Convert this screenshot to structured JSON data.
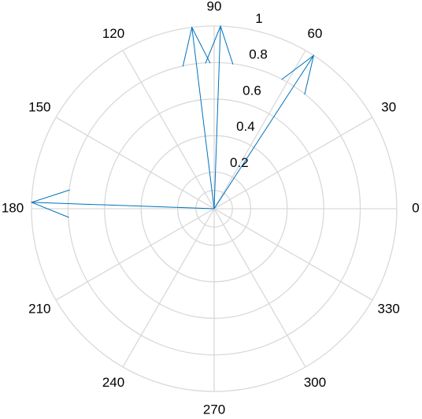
{
  "chart_data": {
    "type": "compass",
    "series": [
      {
        "color": "#0072bd",
        "theta": [
          57,
          88,
          97,
          178
        ],
        "values": [
          1,
          1,
          1,
          1
        ]
      }
    ],
    "rlim": [
      0,
      1
    ],
    "rticks": [
      0.2,
      0.4,
      0.6,
      0.8,
      1
    ],
    "thetaticks": [
      0,
      30,
      60,
      90,
      120,
      150,
      180,
      210,
      240,
      270,
      300,
      330
    ],
    "grid": true
  }
}
